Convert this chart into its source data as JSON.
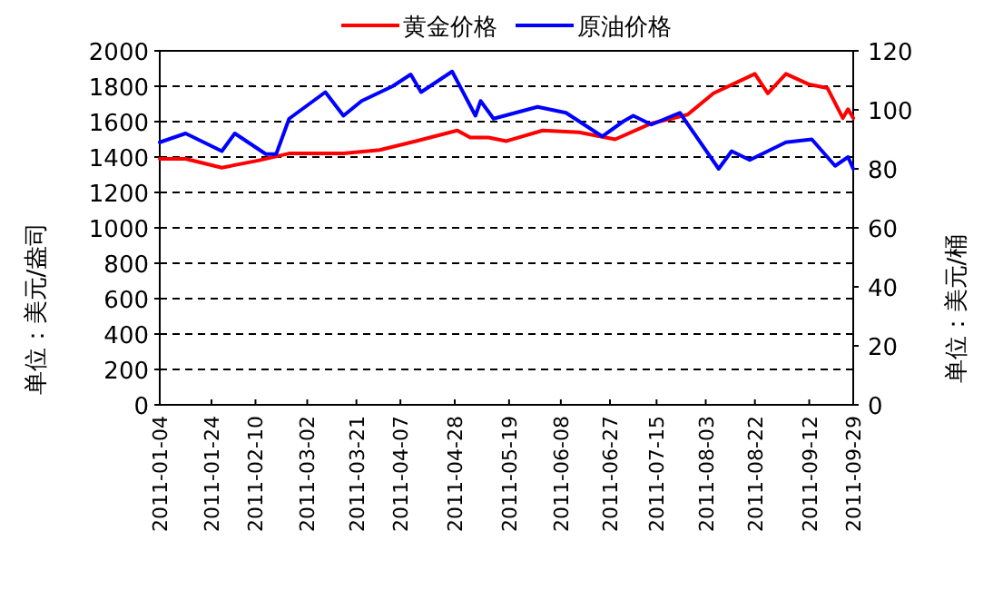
{
  "chart_data": {
    "type": "line",
    "ylabel": "单位：美元/盎司",
    "y2label": "单位：美元/桶",
    "grid": "y",
    "legend": "top",
    "xlim": [
      "2011-01-04",
      "2011-09-29"
    ],
    "xticks": [
      {
        "value": "2011-01-04",
        "label": "2011-01-04"
      },
      {
        "value": "2011-01-24",
        "label": "2011-01-24"
      },
      {
        "value": "2011-02-10",
        "label": "2011-02-10"
      },
      {
        "value": "2011-03-02",
        "label": "2011-03-02"
      },
      {
        "value": "2011-03-21",
        "label": "2011-03-21"
      },
      {
        "value": "2011-04-07",
        "label": "2011-04-07"
      },
      {
        "value": "2011-04-28",
        "label": "2011-04-28"
      },
      {
        "value": "2011-05-19",
        "label": "2011-05-19"
      },
      {
        "value": "2011-06-08",
        "label": "2011-06-08"
      },
      {
        "value": "2011-06-27",
        "label": "2011-06-27"
      },
      {
        "value": "2011-07-15",
        "label": "2011-07-15"
      },
      {
        "value": "2011-08-03",
        "label": "2011-08-03"
      },
      {
        "value": "2011-08-22",
        "label": "2011-08-22"
      },
      {
        "value": "2011-09-12",
        "label": "2011-09-12"
      },
      {
        "value": "2011-09-29",
        "label": "2011-09-29"
      }
    ],
    "ylim": [
      0,
      2000
    ],
    "yticks": [
      0,
      200,
      400,
      600,
      800,
      1000,
      1200,
      1400,
      1600,
      1800,
      2000
    ],
    "y2lim": [
      0,
      120
    ],
    "y2ticks": [
      0,
      20,
      40,
      60,
      80,
      100,
      120
    ],
    "series": [
      {
        "name": "黄金价格",
        "color": "#ff0000",
        "x": [
          "2011-01-04",
          "2011-01-14",
          "2011-01-28",
          "2011-02-11",
          "2011-02-23",
          "2011-03-16",
          "2011-03-30",
          "2011-04-13",
          "2011-04-29",
          "2011-05-04",
          "2011-05-11",
          "2011-05-18",
          "2011-06-01",
          "2011-06-15",
          "2011-06-29",
          "2011-07-13",
          "2011-07-27",
          "2011-08-06",
          "2011-08-22",
          "2011-08-27",
          "2011-09-03",
          "2011-09-12",
          "2011-09-19",
          "2011-09-25",
          "2011-09-27",
          "2011-09-29"
        ],
        "values": [
          1390,
          1390,
          1340,
          1380,
          1420,
          1420,
          1440,
          1490,
          1550,
          1510,
          1510,
          1490,
          1550,
          1540,
          1500,
          1590,
          1640,
          1760,
          1870,
          1760,
          1870,
          1810,
          1790,
          1620,
          1670,
          1620
        ]
      },
      {
        "name": "原油价格",
        "color": "#0000ff",
        "axis": "y2",
        "x": [
          "2011-01-04",
          "2011-01-14",
          "2011-01-28",
          "2011-02-02",
          "2011-02-14",
          "2011-02-18",
          "2011-02-23",
          "2011-03-09",
          "2011-03-16",
          "2011-03-23",
          "2011-04-04",
          "2011-04-11",
          "2011-04-15",
          "2011-04-27",
          "2011-05-03",
          "2011-05-06",
          "2011-05-08",
          "2011-05-13",
          "2011-05-30",
          "2011-06-10",
          "2011-06-24",
          "2011-07-02",
          "2011-07-06",
          "2011-07-13",
          "2011-07-24",
          "2011-08-08",
          "2011-08-13",
          "2011-08-20",
          "2011-09-03",
          "2011-09-13",
          "2011-09-22",
          "2011-09-27",
          "2011-09-29"
        ],
        "values": [
          89,
          92,
          86,
          92,
          85,
          85,
          97,
          106,
          98,
          103,
          108,
          112,
          106,
          113,
          103,
          98,
          103,
          97,
          101,
          99,
          91,
          96,
          98,
          95,
          99,
          80,
          86,
          83,
          89,
          90,
          81,
          84,
          80
        ]
      }
    ]
  }
}
